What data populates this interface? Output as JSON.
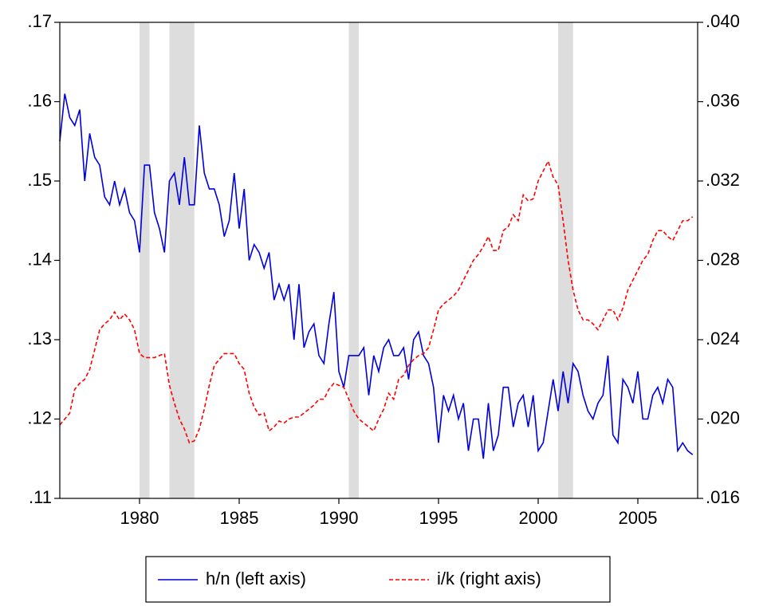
{
  "chart_data": {
    "type": "line",
    "x": [
      1976,
      1976.25,
      1976.5,
      1976.75,
      1977,
      1977.25,
      1977.5,
      1977.75,
      1978,
      1978.25,
      1978.5,
      1978.75,
      1979,
      1979.25,
      1979.5,
      1979.75,
      1980,
      1980.25,
      1980.5,
      1980.75,
      1981,
      1981.25,
      1981.5,
      1981.75,
      1982,
      1982.25,
      1982.5,
      1982.75,
      1983,
      1983.25,
      1983.5,
      1983.75,
      1984,
      1984.25,
      1984.5,
      1984.75,
      1985,
      1985.25,
      1985.5,
      1985.75,
      1986,
      1986.25,
      1986.5,
      1986.75,
      1987,
      1987.25,
      1987.5,
      1987.75,
      1988,
      1988.25,
      1988.5,
      1988.75,
      1989,
      1989.25,
      1989.5,
      1989.75,
      1990,
      1990.25,
      1990.5,
      1990.75,
      1991,
      1991.25,
      1991.5,
      1991.75,
      1992,
      1992.25,
      1992.5,
      1992.75,
      1993,
      1993.25,
      1993.5,
      1993.75,
      1994,
      1994.25,
      1994.5,
      1994.75,
      1995,
      1995.25,
      1995.5,
      1995.75,
      1996,
      1996.25,
      1996.5,
      1996.75,
      1997,
      1997.25,
      1997.5,
      1997.75,
      1998,
      1998.25,
      1998.5,
      1998.75,
      1999,
      1999.25,
      1999.5,
      1999.75,
      2000,
      2000.25,
      2000.5,
      2000.75,
      2001,
      2001.25,
      2001.5,
      2001.75,
      2002,
      2002.25,
      2002.5,
      2002.75,
      2003,
      2003.25,
      2003.5,
      2003.75,
      2004,
      2004.25,
      2004.5,
      2004.75,
      2005,
      2005.25,
      2005.5,
      2005.75,
      2006,
      2006.25,
      2006.5,
      2006.75,
      2007,
      2007.25,
      2007.5,
      2007.75
    ],
    "series": [
      {
        "name": "h/n (left axis)",
        "color": "#0000dd",
        "dash": false,
        "values": [
          0.155,
          0.161,
          0.158,
          0.157,
          0.159,
          0.15,
          0.156,
          0.153,
          0.152,
          0.148,
          0.147,
          0.15,
          0.147,
          0.149,
          0.146,
          0.145,
          0.141,
          0.152,
          0.152,
          0.146,
          0.144,
          0.141,
          0.15,
          0.151,
          0.147,
          0.153,
          0.147,
          0.147,
          0.157,
          0.151,
          0.149,
          0.149,
          0.147,
          0.143,
          0.145,
          0.151,
          0.144,
          0.149,
          0.14,
          0.142,
          0.141,
          0.139,
          0.141,
          0.135,
          0.137,
          0.135,
          0.137,
          0.13,
          0.137,
          0.129,
          0.131,
          0.132,
          0.128,
          0.127,
          0.132,
          0.136,
          0.126,
          0.124,
          0.128,
          0.128,
          0.128,
          0.129,
          0.123,
          0.128,
          0.126,
          0.129,
          0.13,
          0.128,
          0.128,
          0.129,
          0.125,
          0.13,
          0.131,
          0.128,
          0.127,
          0.124,
          0.117,
          0.123,
          0.121,
          0.123,
          0.12,
          0.122,
          0.116,
          0.12,
          0.12,
          0.115,
          0.122,
          0.116,
          0.118,
          0.124,
          0.124,
          0.119,
          0.122,
          0.123,
          0.119,
          0.123,
          0.116,
          0.117,
          0.121,
          0.125,
          0.121,
          0.126,
          0.122,
          0.127,
          0.126,
          0.123,
          0.121,
          0.12,
          0.122,
          0.123,
          0.128,
          0.118,
          0.117,
          0.125,
          0.124,
          0.122,
          0.126,
          0.12,
          0.12,
          0.123,
          0.124,
          0.122,
          0.125,
          0.124,
          0.116,
          0.117,
          0.116,
          0.1155
        ]
      },
      {
        "name": "i/k (right axis)",
        "color": "#ff0000",
        "dash": true,
        "axis": "y2",
        "values": [
          0.0197,
          0.02,
          0.0203,
          0.0215,
          0.0218,
          0.022,
          0.0225,
          0.0235,
          0.0245,
          0.0248,
          0.025,
          0.0254,
          0.025,
          0.0253,
          0.025,
          0.0245,
          0.0233,
          0.0231,
          0.0231,
          0.0231,
          0.0232,
          0.0233,
          0.0217,
          0.0208,
          0.02,
          0.0195,
          0.0188,
          0.0189,
          0.0195,
          0.0205,
          0.0217,
          0.0227,
          0.023,
          0.0233,
          0.0233,
          0.0233,
          0.0228,
          0.0225,
          0.0213,
          0.0206,
          0.0202,
          0.0203,
          0.0194,
          0.0196,
          0.0199,
          0.0198,
          0.02,
          0.0201,
          0.0201,
          0.0203,
          0.0205,
          0.0207,
          0.021,
          0.021,
          0.0215,
          0.0218,
          0.0217,
          0.0216,
          0.021,
          0.0204,
          0.02,
          0.0198,
          0.0196,
          0.0194,
          0.02,
          0.0205,
          0.0213,
          0.021,
          0.022,
          0.0222,
          0.0227,
          0.023,
          0.0232,
          0.0233,
          0.0236,
          0.0245,
          0.0255,
          0.0258,
          0.026,
          0.0262,
          0.0265,
          0.027,
          0.0275,
          0.028,
          0.0283,
          0.0287,
          0.0292,
          0.0285,
          0.0285,
          0.0295,
          0.0297,
          0.0303,
          0.03,
          0.0313,
          0.031,
          0.0311,
          0.032,
          0.0325,
          0.033,
          0.0322,
          0.0318,
          0.03,
          0.028,
          0.0265,
          0.0255,
          0.025,
          0.025,
          0.0248,
          0.0245,
          0.025,
          0.0255,
          0.0255,
          0.025,
          0.0256,
          0.0265,
          0.027,
          0.0275,
          0.028,
          0.0283,
          0.029,
          0.0295,
          0.0295,
          0.0292,
          0.029,
          0.0295,
          0.03,
          0.03,
          0.0302
        ]
      }
    ],
    "shading": [
      [
        1980,
        1980.5
      ],
      [
        1981.5,
        1982.75
      ],
      [
        1990.5,
        1991
      ],
      [
        2001,
        2001.75
      ]
    ],
    "shading_color": "#dddddd",
    "xlim": [
      1976,
      2008
    ],
    "xticks": [
      1980,
      1985,
      1990,
      1995,
      2000,
      2005
    ],
    "ylim": [
      0.11,
      0.17
    ],
    "yticks": [
      {
        "value": 0.11,
        "label": ".11"
      },
      {
        "value": 0.12,
        "label": ".12"
      },
      {
        "value": 0.13,
        "label": ".13"
      },
      {
        "value": 0.14,
        "label": ".14"
      },
      {
        "value": 0.15,
        "label": ".15"
      },
      {
        "value": 0.16,
        "label": ".16"
      },
      {
        "value": 0.17,
        "label": ".17"
      }
    ],
    "y2lim": [
      0.016,
      0.04
    ],
    "y2ticks": [
      {
        "value": 0.016,
        "label": ".016"
      },
      {
        "value": 0.02,
        "label": ".020"
      },
      {
        "value": 0.024,
        "label": ".024"
      },
      {
        "value": 0.028,
        "label": ".028"
      },
      {
        "value": 0.032,
        "label": ".032"
      },
      {
        "value": 0.036,
        "label": ".036"
      },
      {
        "value": 0.04,
        "label": ".040"
      }
    ],
    "legend": "bottom"
  }
}
